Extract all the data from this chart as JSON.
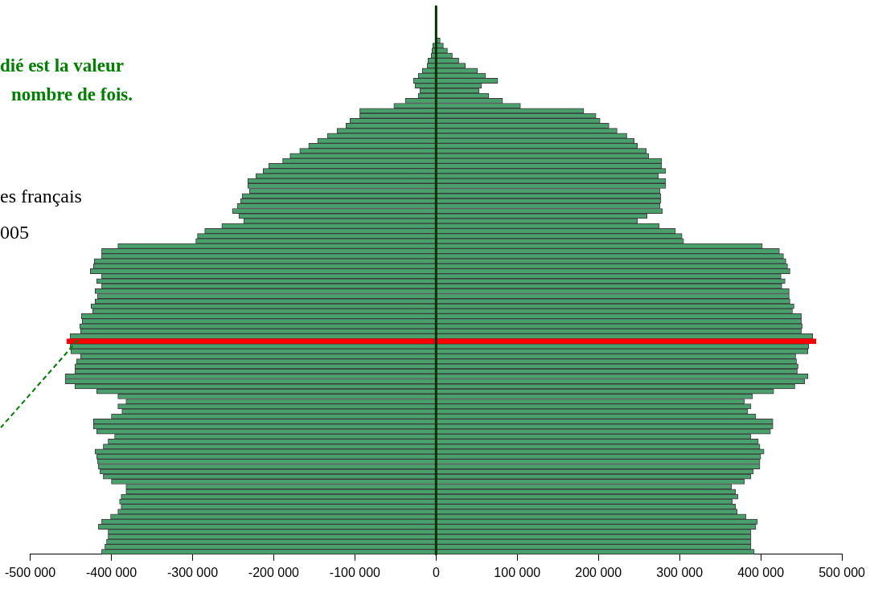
{
  "chart_data": {
    "type": "bar",
    "orientation": "horizontal",
    "stacked": true,
    "legend": false,
    "categories": [
      null,
      null,
      null,
      null,
      null,
      null,
      null,
      null,
      null,
      null,
      null,
      null,
      null,
      null,
      null,
      null,
      null,
      null,
      null,
      null,
      null,
      null,
      null,
      null,
      null,
      null,
      null,
      null,
      null,
      null,
      null,
      null,
      null,
      null,
      null,
      null,
      null,
      null,
      null,
      null,
      null,
      null,
      null,
      null,
      null,
      null,
      null,
      null,
      null,
      null,
      null,
      null,
      null,
      null,
      null,
      null,
      null,
      null,
      null,
      null,
      null,
      null,
      null,
      null,
      null,
      null,
      null,
      null,
      null,
      null,
      null,
      null,
      null,
      null,
      null,
      null,
      null,
      null,
      null,
      null,
      null,
      null,
      null,
      null,
      null,
      null,
      null,
      null,
      null,
      null,
      null,
      null,
      null,
      null,
      null,
      null,
      null,
      null,
      null,
      null,
      null,
      null,
      null,
      null,
      null,
      null,
      null,
      null,
      null
    ],
    "series": [
      {
        "color": "#4aa06c",
        "colors": [
          "#4aa06c",
          "#4aa06c",
          "#4aa06c",
          "#4aa06c",
          "#4aa06c",
          "#4aa06c",
          "#4aa06c",
          "#4aa06c",
          "#4aa06c",
          "#4aa06c",
          "#4aa06c",
          "#4aa06c",
          "#4aa06c",
          "#4aa06c",
          "#4aa06c",
          "#4aa06c",
          "#4aa06c",
          "#4aa06c",
          "#4aa06c",
          "#4aa06c",
          "#4aa06c",
          "#4aa06c",
          "#4aa06c",
          "#4aa06c",
          "#4aa06c",
          "#4aa06c",
          "#4aa06c",
          "#4aa06c",
          "#4aa06c",
          "#4aa06c",
          "#4aa06c",
          "#4aa06c",
          "#4aa06c",
          "#4aa06c",
          "#4aa06c",
          "#4aa06c",
          "#4aa06c",
          "#4aa06c",
          "#4aa06c",
          "#4aa06c",
          "#4aa06c",
          "#4aa06c",
          "#4aa06c",
          "#4aa06c",
          "#4aa06c",
          "#4aa06c",
          "#4aa06c",
          "#4aa06c",
          "#4aa06c",
          "#4aa06c",
          "#4aa06c",
          "#4aa06c",
          "#4aa06c",
          "#4aa06c",
          "#4aa06c",
          "#4aa06c",
          "#4aa06c",
          "#4aa06c",
          "#4aa06c",
          "#4aa06c",
          "#4aa06c",
          "#4aa06c",
          "#4aa06c",
          "#4aa06c",
          "#4aa06c",
          "#4aa06c",
          "#ff0000",
          "#4aa06c",
          "#4aa06c",
          "#4aa06c",
          "#4aa06c",
          "#4aa06c",
          "#4aa06c",
          "#4aa06c",
          "#4aa06c",
          "#4aa06c",
          "#4aa06c",
          "#4aa06c",
          "#4aa06c",
          "#4aa06c",
          "#4aa06c",
          "#4aa06c",
          "#4aa06c",
          "#4aa06c",
          "#4aa06c",
          "#4aa06c",
          "#4aa06c",
          "#4aa06c",
          "#4aa06c",
          "#4aa06c",
          "#4aa06c",
          "#4aa06c",
          "#4aa06c",
          "#4aa06c",
          "#4aa06c",
          "#4aa06c",
          "#4aa06c",
          "#4aa06c",
          "#4aa06c",
          "#4aa06c",
          "#4aa06c",
          "#4aa06c",
          "#4aa06c",
          "#4aa06c",
          "#4aa06c",
          "#4aa06c",
          "#4aa06c",
          "#4aa06c",
          "#4aa06c"
        ],
        "values": [
          null,
          null,
          null,
          null,
          null,
          null,
          null,
          -4000,
          -5000,
          -6000,
          -10000,
          -11000,
          -17000,
          -22000,
          -28000,
          -26000,
          -20000,
          -22000,
          -38000,
          -52000,
          -94000,
          -94000,
          -106000,
          -111000,
          -122000,
          -134000,
          -146000,
          -157000,
          -168000,
          -180000,
          -189000,
          -206000,
          -213000,
          -222000,
          -232000,
          -232000,
          -230000,
          -239000,
          -241000,
          -245000,
          -251000,
          -243000,
          -237000,
          -264000,
          -285000,
          -294000,
          -296000,
          -392000,
          -412000,
          -412000,
          -421000,
          -422000,
          -426000,
          -412000,
          -418000,
          -412000,
          -420000,
          -417000,
          -420000,
          -425000,
          -423000,
          -437000,
          -436000,
          -439000,
          -438000,
          -451000,
          -455000,
          -451000,
          -450000,
          -438000,
          -443000,
          -445000,
          -445000,
          -457000,
          -457000,
          -445000,
          -418000,
          -392000,
          -382000,
          -392000,
          -387000,
          -400000,
          -422000,
          -422000,
          -418000,
          -396000,
          -404000,
          -410000,
          -420000,
          -418000,
          -417000,
          -416000,
          -414000,
          -410000,
          -400000,
          -382000,
          -382000,
          -388000,
          -390000,
          -388000,
          -392000,
          -401000,
          -412000,
          -416000,
          -404000,
          -404000,
          -406000,
          -408000,
          -412000
        ]
      },
      {
        "color": "#4aa06c",
        "colors": [
          "#4aa06c",
          "#4aa06c",
          "#4aa06c",
          "#4aa06c",
          "#4aa06c",
          "#4aa06c",
          "#4aa06c",
          "#4aa06c",
          "#4aa06c",
          "#4aa06c",
          "#4aa06c",
          "#4aa06c",
          "#4aa06c",
          "#4aa06c",
          "#4aa06c",
          "#4aa06c",
          "#4aa06c",
          "#4aa06c",
          "#4aa06c",
          "#4aa06c",
          "#4aa06c",
          "#4aa06c",
          "#4aa06c",
          "#4aa06c",
          "#4aa06c",
          "#4aa06c",
          "#4aa06c",
          "#4aa06c",
          "#4aa06c",
          "#4aa06c",
          "#4aa06c",
          "#4aa06c",
          "#4aa06c",
          "#4aa06c",
          "#4aa06c",
          "#4aa06c",
          "#4aa06c",
          "#4aa06c",
          "#4aa06c",
          "#4aa06c",
          "#4aa06c",
          "#4aa06c",
          "#4aa06c",
          "#4aa06c",
          "#4aa06c",
          "#4aa06c",
          "#4aa06c",
          "#4aa06c",
          "#4aa06c",
          "#4aa06c",
          "#4aa06c",
          "#4aa06c",
          "#4aa06c",
          "#4aa06c",
          "#4aa06c",
          "#4aa06c",
          "#4aa06c",
          "#4aa06c",
          "#4aa06c",
          "#4aa06c",
          "#4aa06c",
          "#4aa06c",
          "#4aa06c",
          "#4aa06c",
          "#4aa06c",
          "#4aa06c",
          "#ff0000",
          "#4aa06c",
          "#4aa06c",
          "#4aa06c",
          "#4aa06c",
          "#4aa06c",
          "#4aa06c",
          "#4aa06c",
          "#4aa06c",
          "#4aa06c",
          "#4aa06c",
          "#4aa06c",
          "#4aa06c",
          "#4aa06c",
          "#4aa06c",
          "#4aa06c",
          "#4aa06c",
          "#4aa06c",
          "#4aa06c",
          "#4aa06c",
          "#4aa06c",
          "#4aa06c",
          "#4aa06c",
          "#4aa06c",
          "#4aa06c",
          "#4aa06c",
          "#4aa06c",
          "#4aa06c",
          "#4aa06c",
          "#4aa06c",
          "#4aa06c",
          "#4aa06c",
          "#4aa06c",
          "#4aa06c",
          "#4aa06c",
          "#4aa06c",
          "#4aa06c",
          "#4aa06c",
          "#4aa06c",
          "#4aa06c",
          "#4aa06c",
          "#4aa06c",
          "#4aa06c"
        ],
        "values": [
          null,
          null,
          null,
          null,
          null,
          null,
          5000,
          9000,
          14000,
          20000,
          28000,
          36000,
          51000,
          61000,
          76000,
          56000,
          53000,
          65000,
          82000,
          104000,
          182000,
          197000,
          202000,
          213000,
          223000,
          235000,
          244000,
          248000,
          259000,
          262000,
          278000,
          278000,
          283000,
          274000,
          283000,
          283000,
          276000,
          277000,
          277000,
          276000,
          279000,
          260000,
          248000,
          275000,
          295000,
          303000,
          305000,
          402000,
          423000,
          428000,
          431000,
          433000,
          436000,
          425000,
          430000,
          426000,
          435000,
          435000,
          436000,
          441000,
          439000,
          450000,
          450000,
          451000,
          450000,
          464000,
          468000,
          459000,
          458000,
          443000,
          444000,
          446000,
          445000,
          458000,
          454000,
          442000,
          416000,
          390000,
          380000,
          388000,
          384000,
          394000,
          415000,
          415000,
          412000,
          388000,
          397000,
          399000,
          404000,
          400000,
          399000,
          399000,
          391000,
          388000,
          380000,
          364000,
          369000,
          372000,
          365000,
          369000,
          371000,
          382000,
          396000,
          394000,
          388000,
          388000,
          388000,
          388000,
          392000
        ]
      }
    ],
    "xlim": [
      -500000,
      500000
    ],
    "xticks": [
      {
        "value": -500000,
        "label": "-500 000"
      },
      {
        "value": -400000,
        "label": "-400 000"
      },
      {
        "value": -300000,
        "label": "-300 000"
      },
      {
        "value": -200000,
        "label": "-200 000"
      },
      {
        "value": -100000,
        "label": "-100 000"
      },
      0,
      {
        "value": 100000,
        "label": "100 000"
      },
      {
        "value": 200000,
        "label": "200 000"
      },
      {
        "value": 300000,
        "label": "300 000"
      },
      {
        "value": 400000,
        "label": "400 000"
      },
      {
        "value": 500000,
        "label": "500 000"
      }
    ],
    "ref_lines": [
      {
        "axis": "x",
        "value": 0,
        "color": "#003300"
      }
    ],
    "annotations": [
      "dié est la valeur",
      "nombre de fois.",
      "es français",
      "005"
    ]
  }
}
